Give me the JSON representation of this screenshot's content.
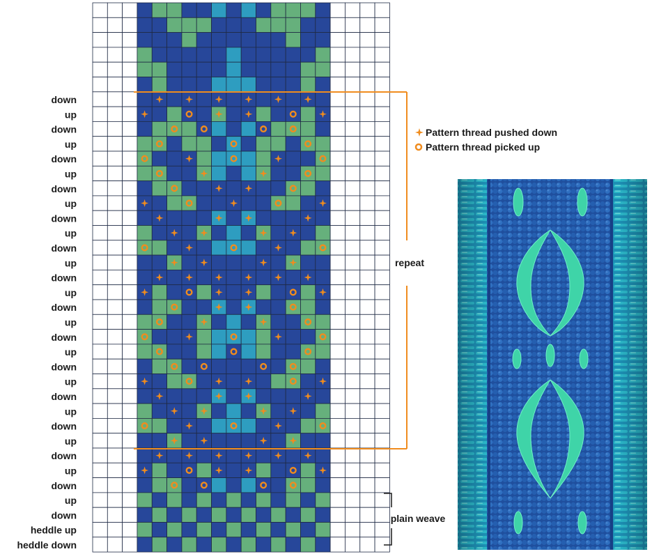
{
  "row_labels": [
    "down",
    "up",
    "down",
    "up",
    "down",
    "up",
    "down",
    "up",
    "down",
    "up",
    "down",
    "up",
    "down",
    "up",
    "down",
    "up",
    "down",
    "up",
    "down",
    "up",
    "down",
    "up",
    "down",
    "up",
    "down",
    "up",
    "down",
    "up",
    "down",
    "heddle up",
    "heddle down"
  ],
  "legend": {
    "pushed_down": "Pattern thread pushed down",
    "picked_up": "Pattern thread picked up"
  },
  "annotations": {
    "repeat": "repeat",
    "plain_weave": "plain weave"
  },
  "colors": {
    "navy": "#27479a",
    "green": "#66b07c",
    "teal": "#2e9dc0",
    "marker": "#f08c1e",
    "grid_line": "#1f2a44"
  },
  "marker_legend": {
    "+": "pattern thread pushed down",
    "o": "pattern thread picked up"
  },
  "chart_data": {
    "type": "weaving-draft",
    "grid": {
      "columns": 20,
      "rows": 37,
      "key": {
        "N": "navy",
        "G": "green",
        "T": "teal",
        "W": "white/unused"
      },
      "cells": [
        "WWWNGGNNTNTNGGGNWWWW",
        "WWWNNGGGNNNGGGNNWWWW",
        "WWWNNNGNNNNNNGNNWWWW",
        "WWWGNNNNNTNNNNNGWWWW",
        "WWWGGNNNNTNNNNGGWWWW",
        "WWWNGNNNTTTNNNGNWWWW",
        "WWWNNNNNNNNNNNNNWWWW",
        "WWWNNGNNGNNGNNGNWWWW",
        "WWWNGGGNTNTNGGGNWWWW",
        "WWWGGNGGNTNGGNGGWWWW",
        "WWWGNNNGTTTGNNNGWWWW",
        "WWWGGNNGTNTGNNGGWWWW",
        "WWWNGGNNNNNNNGGNWWWW",
        "WWWNNGGNNNNNGGNNWWWW",
        "WWWNNNNNTNTNNNNNWWWW",
        "WWWGNNNGNTNGNNNGWWWW",
        "WWWGGNNNTTTNNNGGWWWW",
        "WWWNNGNNNNNNNGNNWWWW",
        "WWWNNNNNNNNNNNNNWWWW",
        "WWWNGNNGNNNGNNGNWWWW",
        "WWWNGGNNTNTNNGGNWWWW",
        "WWWGGNNGNTNGNNGGWWWW",
        "WWWGNNNGTTTGNNNGWWWW",
        "WWWGGNNGTNTGNNGGWWWW",
        "WWWNGGNNNNNNNGGNWWWW",
        "WWWNNGGNNNNNGGNNWWWW",
        "WWWNNNNNTNTNNNNNWWWW",
        "WWWGNNNGNTNGNNNGWWWW",
        "WWWGGNNNTTTNNNGGWWWW",
        "WWWNNGNNNNNNNGNNWWWW",
        "WWWNNNNNNNNNNNNNWWWW",
        "WWWNGNNGNNNGNNGNWWWW",
        "WWWNGGNNTNTNNGGNWWWW",
        "WWWGNGNGNGNGNGNGWWWW",
        "WWWNGNGNGNGNGNGNWWWW",
        "WWWGNGNGNGNGNGNGWWWW",
        "WWWNGNGNGNGNGNGNWWWW"
      ],
      "markers": [
        {
          "row": 6,
          "plus": [
            4,
            6,
            8,
            10,
            12,
            14
          ],
          "circle": []
        },
        {
          "row": 7,
          "plus": [
            3,
            8,
            10,
            15
          ],
          "circle": [
            6,
            13
          ]
        },
        {
          "row": 8,
          "plus": [],
          "circle": [
            5,
            7,
            11,
            13
          ]
        },
        {
          "row": 9,
          "plus": [],
          "circle": [
            4,
            9,
            14
          ]
        },
        {
          "row": 10,
          "plus": [
            6,
            12
          ],
          "circle": [
            3,
            9,
            15
          ]
        },
        {
          "row": 11,
          "plus": [
            7,
            11
          ],
          "circle": [
            4,
            14
          ]
        },
        {
          "row": 12,
          "plus": [
            8,
            10
          ],
          "circle": [
            5,
            13
          ]
        },
        {
          "row": 13,
          "plus": [
            3,
            9,
            15
          ],
          "circle": [
            6,
            12
          ]
        },
        {
          "row": 14,
          "plus": [
            4,
            8,
            10,
            14
          ],
          "circle": []
        },
        {
          "row": 15,
          "plus": [
            5,
            7,
            11,
            13
          ],
          "circle": []
        },
        {
          "row": 16,
          "plus": [
            6,
            12
          ],
          "circle": [
            3,
            9,
            15
          ]
        },
        {
          "row": 17,
          "plus": [
            5,
            7,
            11,
            13
          ],
          "circle": []
        },
        {
          "row": 18,
          "plus": [
            4,
            6,
            8,
            10,
            12,
            14
          ],
          "circle": []
        },
        {
          "row": 19,
          "plus": [
            3,
            8,
            10,
            15
          ],
          "circle": [
            6,
            13
          ]
        },
        {
          "row": 20,
          "plus": [
            8,
            10
          ],
          "circle": [
            5,
            13
          ]
        },
        {
          "row": 21,
          "plus": [
            7,
            11
          ],
          "circle": [
            4,
            14
          ]
        },
        {
          "row": 22,
          "plus": [
            6,
            12
          ],
          "circle": [
            3,
            9,
            15
          ]
        },
        {
          "row": 23,
          "plus": [],
          "circle": [
            4,
            9,
            14
          ]
        },
        {
          "row": 24,
          "plus": [],
          "circle": [
            5,
            7,
            11,
            13
          ]
        },
        {
          "row": 25,
          "plus": [
            3,
            8,
            10,
            15
          ],
          "circle": [
            6,
            13
          ]
        },
        {
          "row": 26,
          "plus": [
            4,
            8,
            10,
            14
          ],
          "circle": []
        },
        {
          "row": 27,
          "plus": [
            5,
            7,
            11,
            13
          ],
          "circle": []
        },
        {
          "row": 28,
          "plus": [
            6,
            12
          ],
          "circle": [
            3,
            9,
            15
          ]
        },
        {
          "row": 29,
          "plus": [
            5,
            7,
            11,
            13
          ],
          "circle": []
        },
        {
          "row": 30,
          "plus": [
            4,
            6,
            8,
            10,
            12,
            14
          ],
          "circle": []
        },
        {
          "row": 31,
          "plus": [
            3,
            8,
            10,
            15
          ],
          "circle": [
            6,
            13
          ]
        },
        {
          "row": 32,
          "plus": [],
          "circle": [
            5,
            7,
            11,
            13
          ]
        }
      ]
    }
  }
}
